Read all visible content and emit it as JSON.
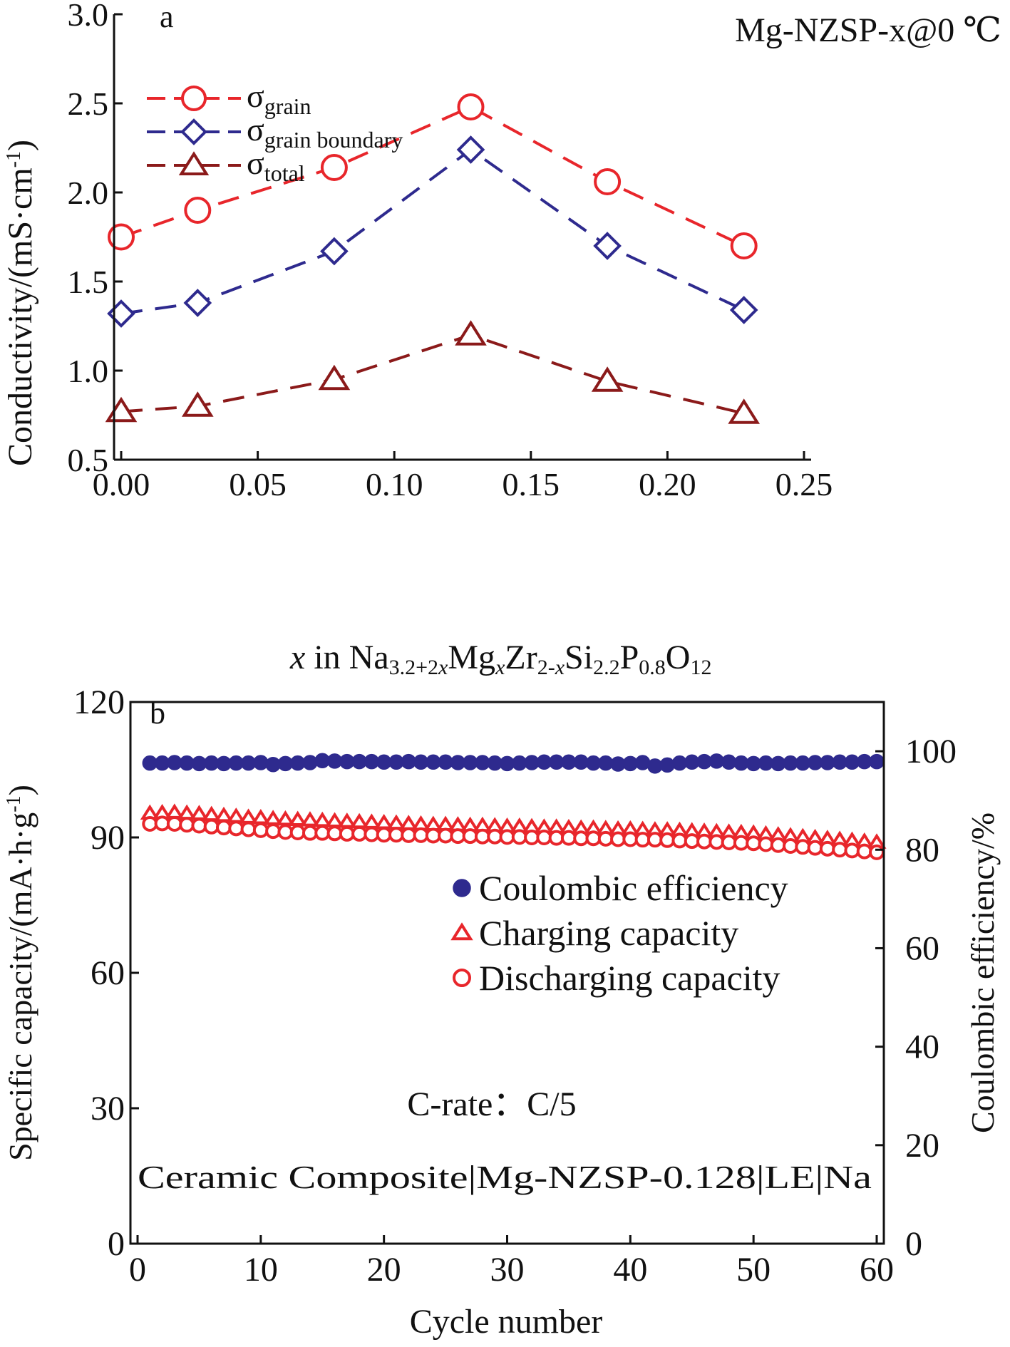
{
  "chart_data": [
    {
      "type": "line",
      "panel_label": "a",
      "annotation": "Mg-NZSP-x@0 ℃",
      "xlabel": "x in Na3.2+2xMgxZr2-xSi2.2P0.8O12",
      "ylabel": "Conductivity/(mS·cm-1)",
      "xlim": [
        0,
        0.25
      ],
      "ylim": [
        0.5,
        3.0
      ],
      "x_ticks": [
        "0.00",
        "0.05",
        "0.10",
        "0.15",
        "0.20",
        "0.25"
      ],
      "y_ticks": [
        "0.5",
        "1.0",
        "1.5",
        "2.0",
        "2.5",
        "3.0"
      ],
      "legend_position": "top-left",
      "x": [
        0.0,
        0.028,
        0.078,
        0.128,
        0.178,
        0.228
      ],
      "series": [
        {
          "name": "σgrain",
          "symbol": "σ",
          "subscript": "grain",
          "marker": "circle",
          "color": "#e8262b",
          "values": [
            1.75,
            1.9,
            2.14,
            2.48,
            2.06,
            1.7
          ]
        },
        {
          "name": "σgrain boundary",
          "symbol": "σ",
          "subscript": "grain boundary",
          "marker": "diamond",
          "color": "#2e2a8e",
          "values": [
            1.32,
            1.38,
            1.67,
            2.24,
            1.7,
            1.34
          ]
        },
        {
          "name": "σtotal",
          "symbol": "σ",
          "subscript": "total",
          "marker": "triangle",
          "color": "#8b1a1a",
          "values": [
            0.77,
            0.8,
            0.95,
            1.2,
            0.94,
            0.76
          ]
        }
      ]
    },
    {
      "type": "scatter",
      "panel_label": "b",
      "xlabel": "Cycle number",
      "ylabel": "Specific capacity/(mA·h·g-1)",
      "y2label": "Coulombic efficiency/%",
      "xlim": [
        0,
        60
      ],
      "ylim": [
        0,
        120
      ],
      "y2lim": [
        0,
        110
      ],
      "x_ticks": [
        "0",
        "10",
        "20",
        "30",
        "40",
        "50",
        "60"
      ],
      "y_ticks": [
        "0",
        "30",
        "60",
        "90",
        "120"
      ],
      "y2_ticks": [
        "0",
        "20",
        "40",
        "60",
        "80",
        "100"
      ],
      "legend_position": "right",
      "annotations": [
        "C-rate：C/5",
        "Ceramic Composite|Mg-NZSP-0.128|LE|Na"
      ],
      "x": [
        1,
        2,
        3,
        4,
        5,
        6,
        7,
        8,
        9,
        10,
        11,
        12,
        13,
        14,
        15,
        16,
        17,
        18,
        19,
        20,
        21,
        22,
        23,
        24,
        25,
        26,
        27,
        28,
        29,
        30,
        31,
        32,
        33,
        34,
        35,
        36,
        37,
        38,
        39,
        40,
        41,
        42,
        43,
        44,
        45,
        46,
        47,
        48,
        49,
        50,
        51,
        52,
        53,
        54,
        55,
        56,
        57,
        58,
        59,
        60
      ],
      "series": [
        {
          "name": "Coulombic efficiency",
          "axis": "right",
          "marker": "filled-circle",
          "color": "#2e2a8e",
          "values": [
            97.6,
            97.6,
            97.7,
            97.6,
            97.5,
            97.6,
            97.5,
            97.6,
            97.6,
            97.7,
            97.3,
            97.5,
            97.6,
            97.7,
            98.1,
            98.0,
            97.9,
            97.9,
            97.9,
            97.8,
            97.8,
            97.9,
            97.8,
            97.8,
            97.8,
            97.7,
            97.7,
            97.7,
            97.6,
            97.5,
            97.6,
            97.7,
            97.8,
            97.8,
            97.8,
            97.8,
            97.6,
            97.6,
            97.4,
            97.5,
            97.7,
            97.0,
            97.2,
            97.6,
            97.8,
            97.9,
            98.0,
            97.8,
            97.6,
            97.5,
            97.6,
            97.5,
            97.6,
            97.6,
            97.7,
            97.7,
            97.8,
            97.8,
            97.9,
            97.9
          ]
        },
        {
          "name": "Charging capacity",
          "axis": "left",
          "marker": "triangle",
          "color": "#e8262b",
          "values": [
            95.3,
            95.4,
            95.5,
            95.3,
            95.2,
            95.0,
            94.8,
            94.6,
            94.4,
            94.3,
            94.1,
            94.0,
            93.9,
            93.8,
            93.7,
            93.6,
            93.5,
            93.4,
            93.3,
            93.2,
            93.1,
            93.0,
            92.9,
            92.8,
            92.8,
            92.7,
            92.6,
            92.6,
            92.5,
            92.4,
            92.4,
            92.3,
            92.2,
            92.2,
            92.1,
            92.0,
            92.0,
            91.9,
            91.8,
            91.8,
            91.7,
            91.6,
            91.6,
            91.5,
            91.4,
            91.3,
            91.2,
            91.1,
            91.0,
            90.9,
            90.7,
            90.5,
            90.3,
            90.1,
            89.9,
            89.7,
            89.5,
            89.3,
            89.1,
            88.9
          ]
        },
        {
          "name": "Discharging capacity",
          "axis": "left",
          "marker": "circle",
          "color": "#e8262b",
          "values": [
            93.0,
            93.1,
            93.0,
            92.8,
            92.6,
            92.4,
            92.2,
            92.0,
            91.8,
            91.6,
            91.4,
            91.2,
            91.1,
            91.0,
            91.0,
            90.9,
            90.8,
            90.8,
            90.7,
            90.6,
            90.6,
            90.5,
            90.5,
            90.4,
            90.4,
            90.3,
            90.3,
            90.2,
            90.2,
            90.1,
            90.1,
            90.0,
            90.0,
            89.9,
            89.9,
            89.8,
            89.8,
            89.7,
            89.6,
            89.6,
            89.5,
            89.5,
            89.4,
            89.3,
            89.2,
            89.1,
            89.0,
            88.9,
            88.8,
            88.7,
            88.5,
            88.3,
            88.1,
            87.9,
            87.7,
            87.5,
            87.3,
            87.1,
            86.9,
            86.7
          ]
        }
      ]
    }
  ]
}
